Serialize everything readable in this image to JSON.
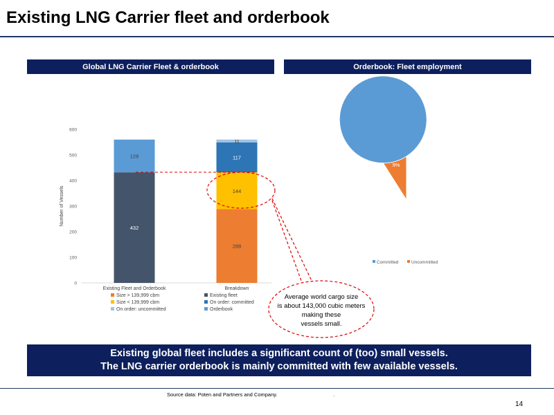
{
  "slide": {
    "title": "Existing LNG Carrier fleet and orderbook",
    "left_header": "Global LNG Carrier Fleet & orderbook",
    "right_header": "Orderbook: Fleet employment",
    "callout": [
      "Average world cargo size",
      "is about 143,000 cubic meters",
      "making these",
      "vessels small."
    ],
    "banner_line1": "Existing global fleet includes a significant count of (too) small vessels.",
    "banner_line2": "The LNG carrier orderbook is mainly committed with few available vessels.",
    "source": "Source data: Poten and Partners and Company.",
    "dot": ".",
    "page_number": "14"
  },
  "colors": {
    "navy": "#0d1f5c",
    "existing_fleet": "#44546a",
    "orderbook": "#5b9bd5",
    "large": "#ed7d31",
    "small": "#ffc000",
    "committed": "#2e75b6",
    "uncommitted": "#9dc3e6",
    "dashed": "#e00000"
  },
  "chart_data": [
    {
      "type": "bar",
      "stacked": true,
      "ylabel": "Number of Vessels",
      "ylim": [
        0,
        600
      ],
      "yticks": [
        0,
        100,
        200,
        300,
        400,
        500,
        600
      ],
      "categories": [
        "Existing Fleet and Orderbook",
        "Breakdown"
      ],
      "series": [
        {
          "name": "Existing fleet",
          "values": [
            432,
            null
          ],
          "labels": [
            "432",
            ""
          ],
          "color": "existing_fleet"
        },
        {
          "name": "Orderbook",
          "values": [
            128,
            null
          ],
          "labels": [
            "128",
            ""
          ],
          "color": "orderbook"
        },
        {
          "name": "Size > 139,999 cbm",
          "values": [
            null,
            288
          ],
          "labels": [
            "",
            "288"
          ],
          "color": "large"
        },
        {
          "name": "Size < 139,999 cbm",
          "values": [
            null,
            144
          ],
          "labels": [
            "",
            "144"
          ],
          "color": "small"
        },
        {
          "name": "On order: committed",
          "values": [
            null,
            117
          ],
          "labels": [
            "",
            "117"
          ],
          "color": "committed"
        },
        {
          "name": "On order: uncommitted",
          "values": [
            null,
            11
          ],
          "labels": [
            "",
            "11"
          ],
          "color": "uncommitted"
        }
      ],
      "legend": [
        {
          "name": "Size > 139,999 cbm",
          "color": "large"
        },
        {
          "name": "Existing fleet",
          "color": "existing_fleet"
        },
        {
          "name": "Size < 139,999 cbm",
          "color": "small"
        },
        {
          "name": "On order: committed",
          "color": "committed"
        },
        {
          "name": "On order: uncommitted",
          "color": "uncommitted"
        },
        {
          "name": "Orderbook",
          "color": "orderbook"
        }
      ]
    },
    {
      "type": "pie",
      "slices": [
        {
          "name": "Committed",
          "value": 91,
          "label": "91%",
          "color": "#5b9bd5"
        },
        {
          "name": "Uncommitted",
          "value": 9,
          "label": "9%",
          "color": "#ed7d31"
        }
      ],
      "legend": [
        "Committed",
        "Uncommitted"
      ],
      "legend_position": "bottom"
    }
  ]
}
